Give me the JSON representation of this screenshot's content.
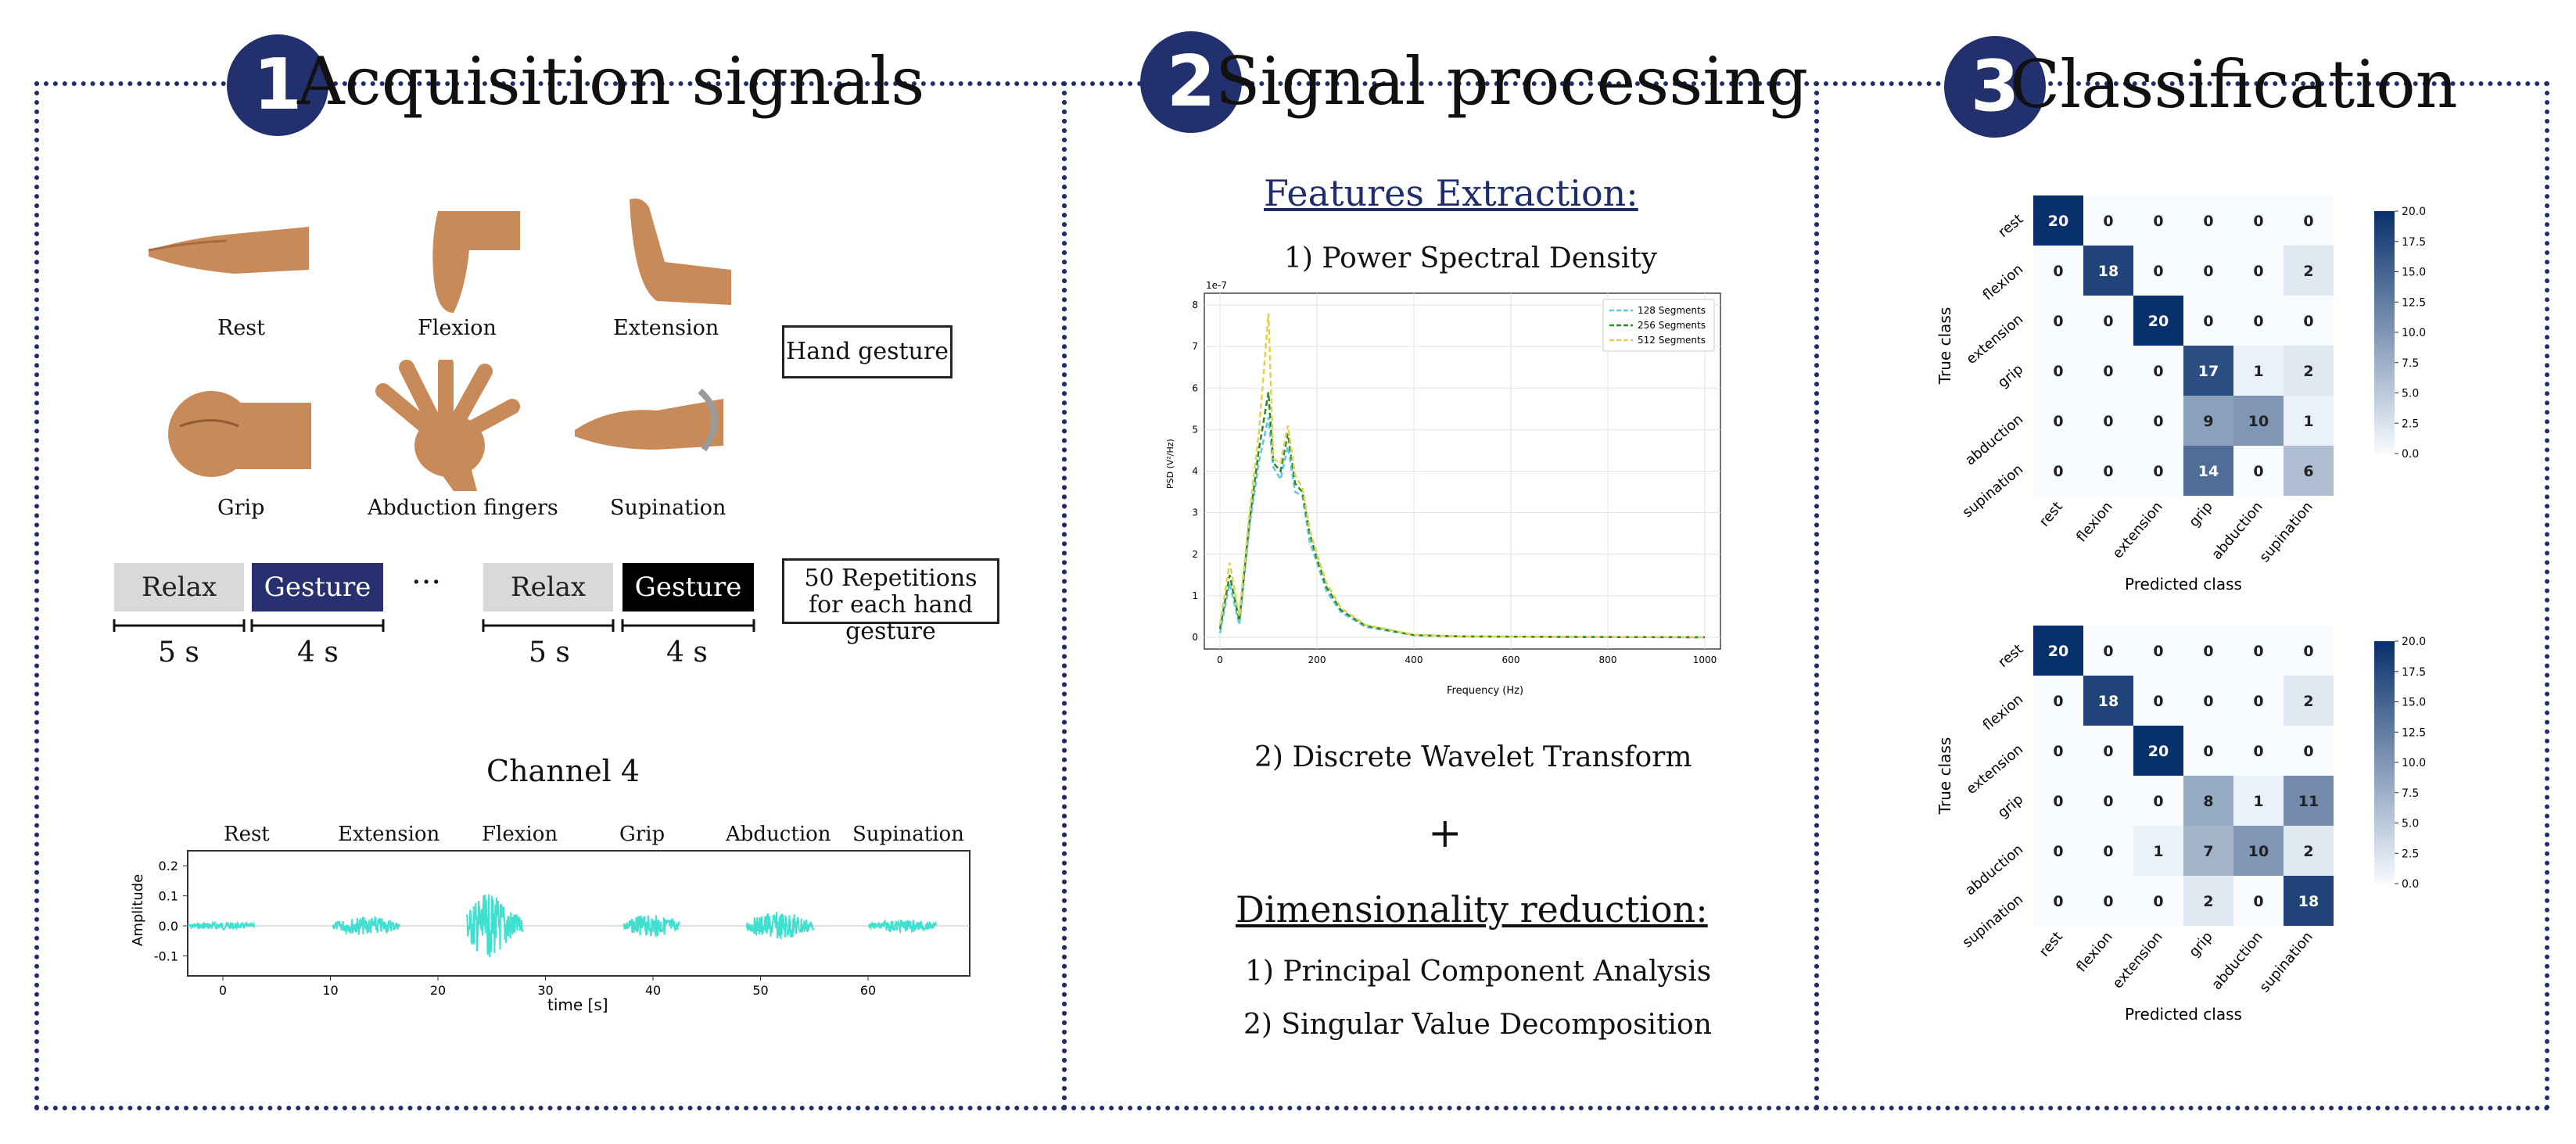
{
  "sections": [
    {
      "number": "1",
      "title": "Acquisition signals"
    },
    {
      "number": "2",
      "title": "Signal processing"
    },
    {
      "number": "3",
      "title": "Classification"
    }
  ],
  "acquisition": {
    "gestures": [
      "Rest",
      "Flexion",
      "Extension",
      "Grip",
      "Abduction fingers",
      "Supination"
    ],
    "hand_gesture_label": "Hand gesture",
    "protocol": [
      {
        "label": "Relax",
        "duration": "5 s"
      },
      {
        "label": "Gesture",
        "duration": "4 s"
      },
      {
        "label": "Relax",
        "duration": "5 s"
      },
      {
        "label": "Gesture",
        "duration": "4 s"
      }
    ],
    "ellipsis": "···",
    "repetitions_label": "50 Repetitions for each hand gesture",
    "channel_title": "Channel 4",
    "emg_labels": [
      "Rest",
      "Extension",
      "Flexion",
      "Grip",
      "Abduction",
      "Supination"
    ],
    "emg_ylabel": "Amplitude",
    "emg_xlabel": "time [s]",
    "emg_yticks": [
      "0.2",
      "0.1",
      "0.0",
      "-0.1"
    ],
    "emg_xticks": [
      "0",
      "10",
      "20",
      "30",
      "40",
      "50",
      "60"
    ]
  },
  "processing": {
    "features_heading": "Features Extraction:",
    "psd_title": "1) Power Spectral Density",
    "dwt_title": "2) Discrete Wavelet Transform",
    "plus": "+",
    "dimred_heading": "Dimensionality reduction:",
    "pca": "1) Principal Component Analysis",
    "svd": "2) Singular Value Decomposition"
  },
  "colors": {
    "navy": "#1f2d6b",
    "badge": "#22306e",
    "gesture_box": "#28306f",
    "emg": "#3fe0d0",
    "relax_box": "#d9d9d9"
  },
  "chart_data": [
    {
      "type": "line",
      "scale_note": "1e-7",
      "xlabel": "Frequency (Hz)",
      "ylabel": "PSD (V²/Hz)",
      "xlim": [
        0,
        1000
      ],
      "ylim": [
        0,
        8
      ],
      "xticks": [
        "0",
        "200",
        "400",
        "600",
        "800",
        "1000"
      ],
      "yticks": [
        "0",
        "1",
        "2",
        "3",
        "4",
        "5",
        "6",
        "7",
        "8"
      ],
      "grid": true,
      "legend": "top-right",
      "x": [
        0,
        20,
        40,
        60,
        80,
        100,
        110,
        125,
        140,
        155,
        170,
        185,
        200,
        220,
        250,
        300,
        400,
        500,
        700,
        1000
      ],
      "series": [
        {
          "name": "128 Segments",
          "color": "#5ec8e5",
          "values": [
            0.1,
            1.3,
            0.3,
            2.6,
            4.2,
            5.3,
            4.1,
            3.8,
            4.6,
            3.5,
            3.4,
            2.3,
            1.8,
            1.1,
            0.6,
            0.25,
            0.05,
            0.02,
            0.01,
            0.0
          ]
        },
        {
          "name": "256 Segments",
          "color": "#2a8a2a",
          "values": [
            0.2,
            1.5,
            0.4,
            2.7,
            4.5,
            5.9,
            4.2,
            4.0,
            4.9,
            3.7,
            3.5,
            2.5,
            1.9,
            1.2,
            0.65,
            0.28,
            0.05,
            0.02,
            0.01,
            0.0
          ]
        },
        {
          "name": "512 Segments",
          "color": "#e3d24b",
          "values": [
            0.3,
            1.8,
            0.5,
            2.9,
            4.9,
            7.8,
            4.3,
            4.2,
            5.1,
            3.9,
            3.6,
            2.6,
            2.0,
            1.3,
            0.7,
            0.3,
            0.06,
            0.02,
            0.01,
            0.0
          ]
        }
      ]
    },
    {
      "type": "heatmap",
      "xlabel": "Predicted class",
      "ylabel": "True class",
      "categories": [
        "rest",
        "flexion",
        "extension",
        "grip",
        "abduction",
        "supination"
      ],
      "vmin": 0,
      "vmax": 20,
      "colorbar_ticks": [
        "20.0",
        "17.5",
        "15.0",
        "12.5",
        "10.0",
        "7.5",
        "5.0",
        "2.5",
        "0.0"
      ],
      "matrix": [
        [
          20,
          0,
          0,
          0,
          0,
          0
        ],
        [
          0,
          18,
          0,
          0,
          0,
          2
        ],
        [
          0,
          0,
          20,
          0,
          0,
          0
        ],
        [
          0,
          0,
          0,
          17,
          1,
          2
        ],
        [
          0,
          0,
          0,
          9,
          10,
          1
        ],
        [
          0,
          0,
          0,
          14,
          0,
          6
        ]
      ]
    },
    {
      "type": "heatmap",
      "xlabel": "Predicted class",
      "ylabel": "True class",
      "categories": [
        "rest",
        "flexion",
        "extension",
        "grip",
        "abduction",
        "supination"
      ],
      "vmin": 0,
      "vmax": 20,
      "colorbar_ticks": [
        "20.0",
        "17.5",
        "15.0",
        "12.5",
        "10.0",
        "7.5",
        "5.0",
        "2.5",
        "0.0"
      ],
      "matrix": [
        [
          20,
          0,
          0,
          0,
          0,
          0
        ],
        [
          0,
          18,
          0,
          0,
          0,
          2
        ],
        [
          0,
          0,
          20,
          0,
          0,
          0
        ],
        [
          0,
          0,
          0,
          8,
          1,
          11
        ],
        [
          0,
          0,
          1,
          7,
          10,
          2
        ],
        [
          0,
          0,
          0,
          2,
          0,
          18
        ]
      ]
    }
  ]
}
